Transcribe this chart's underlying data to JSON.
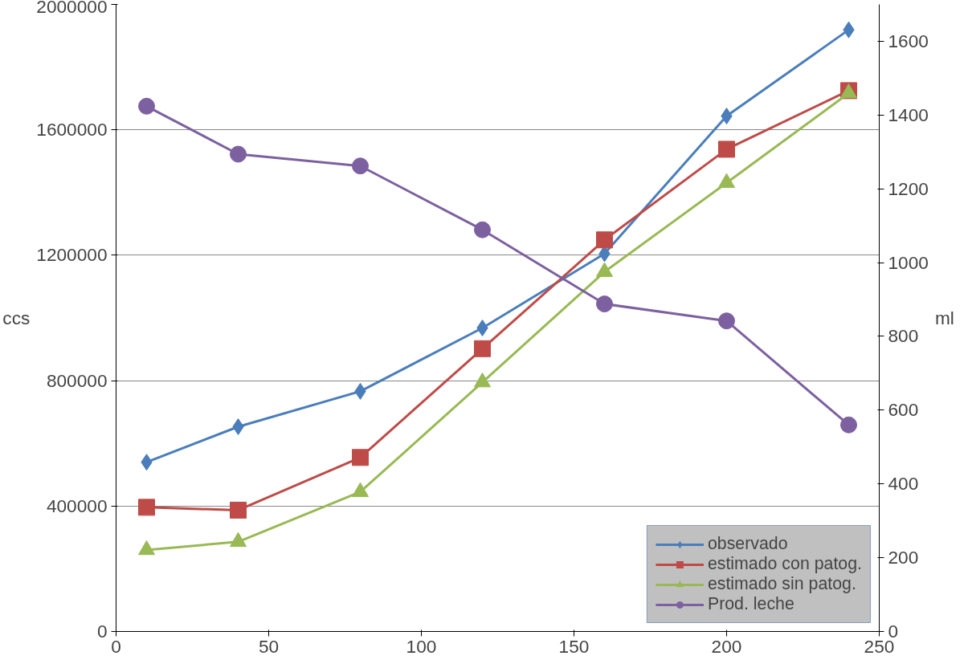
{
  "chart_data": {
    "type": "line",
    "ylabel": "ccs",
    "y2label": "ml",
    "x": [
      10,
      40,
      80,
      120,
      160,
      200,
      240
    ],
    "xlim": [
      0,
      250
    ],
    "xticks": [
      0,
      50,
      100,
      150,
      200,
      250
    ],
    "ylim": [
      0,
      2000000
    ],
    "yticks": [
      0,
      400000,
      800000,
      1200000,
      1600000,
      2000000
    ],
    "y2lim": [
      0,
      1700
    ],
    "y2ticks": [
      0,
      200,
      400,
      600,
      800,
      1000,
      1200,
      1400,
      1600
    ],
    "grid": "y",
    "legend": "bottom right",
    "series": [
      {
        "name": "observado",
        "color": "#4a7ebb",
        "marker": "diamond",
        "values": [
          540000,
          653000,
          766000,
          968000,
          1205000,
          1644000,
          1919000
        ]
      },
      {
        "name": "estimado con patog.",
        "color": "#be4b48",
        "marker": "square",
        "values": [
          396000,
          387000,
          555000,
          902000,
          1249000,
          1538000,
          1725000
        ]
      },
      {
        "name": "estimado sin patog.",
        "color": "#98b954",
        "marker": "triangle",
        "values": [
          260000,
          286000,
          445000,
          795000,
          1147000,
          1431000,
          1717000
        ]
      },
      {
        "name": "Prod. leche",
        "color": "#7d60a0",
        "marker": "circle",
        "axis": "y2",
        "values": [
          1424,
          1294,
          1262,
          1089,
          888,
          842,
          560
        ]
      }
    ]
  }
}
